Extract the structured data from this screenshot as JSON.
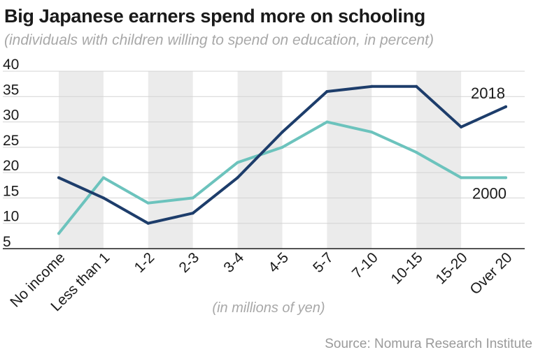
{
  "header": {
    "title": "Big Japanese earners spend more on schooling",
    "subtitle": "(individuals with children willing to spend on education, in percent)"
  },
  "footer": {
    "source": "Source: Nomura Research Institute"
  },
  "colors": {
    "series_2018": "#1d3d6b",
    "series_2000": "#6cc3bd",
    "band": "#ebebeb",
    "axis_text": "#1a1a1a",
    "muted_text": "#a8a8a8"
  },
  "chart_data": {
    "type": "line",
    "title": "Big Japanese earners spend more on schooling",
    "subtitle": "(individuals with children willing to spend on education, in percent)",
    "xlabel": "(in millions of yen)",
    "ylabel": "",
    "ylim": [
      5,
      40
    ],
    "yticks": [
      5,
      10,
      15,
      20,
      25,
      30,
      35,
      40
    ],
    "grid": true,
    "alternating_bands": true,
    "categories": [
      "No income",
      "Less than 1",
      "1-2",
      "2-3",
      "3-4",
      "4-5",
      "5-7",
      "7-10",
      "10-15",
      "15-20",
      "Over 20"
    ],
    "series": [
      {
        "name": "2018",
        "values": [
          19,
          15,
          10,
          12,
          19,
          28,
          36,
          37,
          37,
          29,
          33
        ]
      },
      {
        "name": "2000",
        "values": [
          8,
          19,
          14,
          15,
          22,
          25,
          30,
          28,
          24,
          19,
          19
        ]
      }
    ]
  }
}
